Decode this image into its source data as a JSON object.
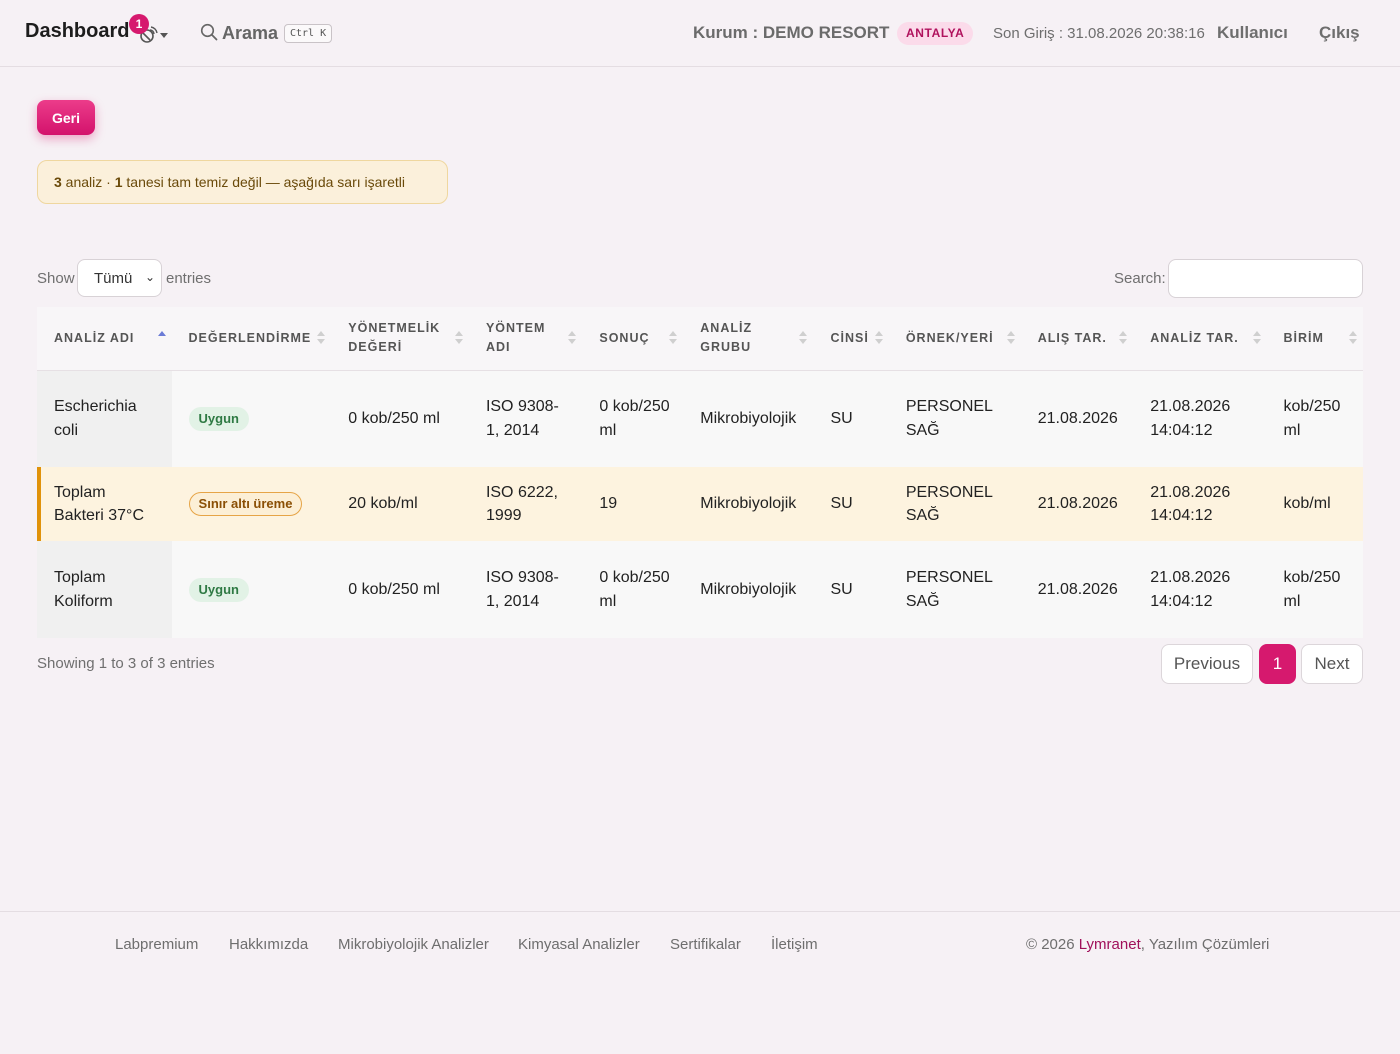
{
  "header": {
    "brand": "Dashboard",
    "notification_count": "1",
    "search_label": "Arama",
    "search_shortcut": "Ctrl K",
    "institution": "Kurum : DEMO RESORT",
    "city_badge": "ANTALYA",
    "last_login": "Son Giriş : 31.08.2026 20:38:16",
    "user_link": "Kullanıcı",
    "logout_link": "Çıkış"
  },
  "back_button": "Geri",
  "notice": {
    "count": "3",
    "text_a": " analiz · ",
    "dirty_count": "1",
    "text_b": " tanesi tam temiz değil — aşağıda sarı işaretli"
  },
  "table_controls": {
    "show_label": "Show",
    "page_length": "Tümü",
    "entries_label": "entries",
    "search_label": "Search:",
    "search_value": ""
  },
  "table": {
    "columns": [
      "ANALİZ ADI",
      "DEĞERLENDİRME",
      "YÖNETMELİK DEĞERİ",
      "YÖNTEM ADI",
      "SONUÇ",
      "ANALİZ GRUBU",
      "CİNSİ",
      "ÖRNEK/YERİ",
      "ALIŞ TAR.",
      "ANALİZ TAR.",
      "BİRİM"
    ],
    "rows": [
      {
        "name": "Escherichia coli",
        "evaluation": "Uygun",
        "limit": "0 kob/250 ml",
        "method": "ISO 9308-1, 2014",
        "result": "0 kob/250 ml",
        "group": "Mikrobiyolojik",
        "type": "SU",
        "sample": "PERSONEL SAĞ",
        "received": "21.08.2026",
        "analyzed": "21.08.2026 14:04:12",
        "unit": "kob/250 ml"
      },
      {
        "name": "Toplam Bakteri 37°C",
        "evaluation": "Sınır altı üreme",
        "limit": "20 kob/ml",
        "method": "ISO 6222, 1999",
        "result": "19",
        "group": "Mikrobiyolojik",
        "type": "SU",
        "sample": "PERSONEL SAĞ",
        "received": "21.08.2026",
        "analyzed": "21.08.2026 14:04:12",
        "unit": "kob/ml"
      },
      {
        "name": "Toplam Koliform",
        "evaluation": "Uygun",
        "limit": "0 kob/250 ml",
        "method": "ISO 9308-1, 2014",
        "result": "0 kob/250 ml",
        "group": "Mikrobiyolojik",
        "type": "SU",
        "sample": "PERSONEL SAĞ",
        "received": "21.08.2026",
        "analyzed": "21.08.2026 14:04:12",
        "unit": "kob/250 ml"
      }
    ]
  },
  "table_footer": {
    "showing": "Showing 1 to 3 of 3 entries",
    "prev": "Previous",
    "page": "1",
    "next": "Next"
  },
  "footer": {
    "links": [
      "Labpremium",
      "Hakkımızda",
      "Mikrobiyolojik Analizler",
      "Kimyasal Analizler",
      "Sertifikalar",
      "İletişim"
    ],
    "copyright_prefix": "© 2026 ",
    "copyright_brand": "Lymranet",
    "copyright_suffix": ", Yazılım Çözümleri"
  },
  "colors": {
    "accent": "#d6196e",
    "warning_row": "#fdf3df",
    "warning_bar": "#e0920a",
    "ok_badge": "#e2f2e6"
  },
  "icons": {
    "notification": "satellite-dish-icon",
    "search": "search-icon"
  }
}
